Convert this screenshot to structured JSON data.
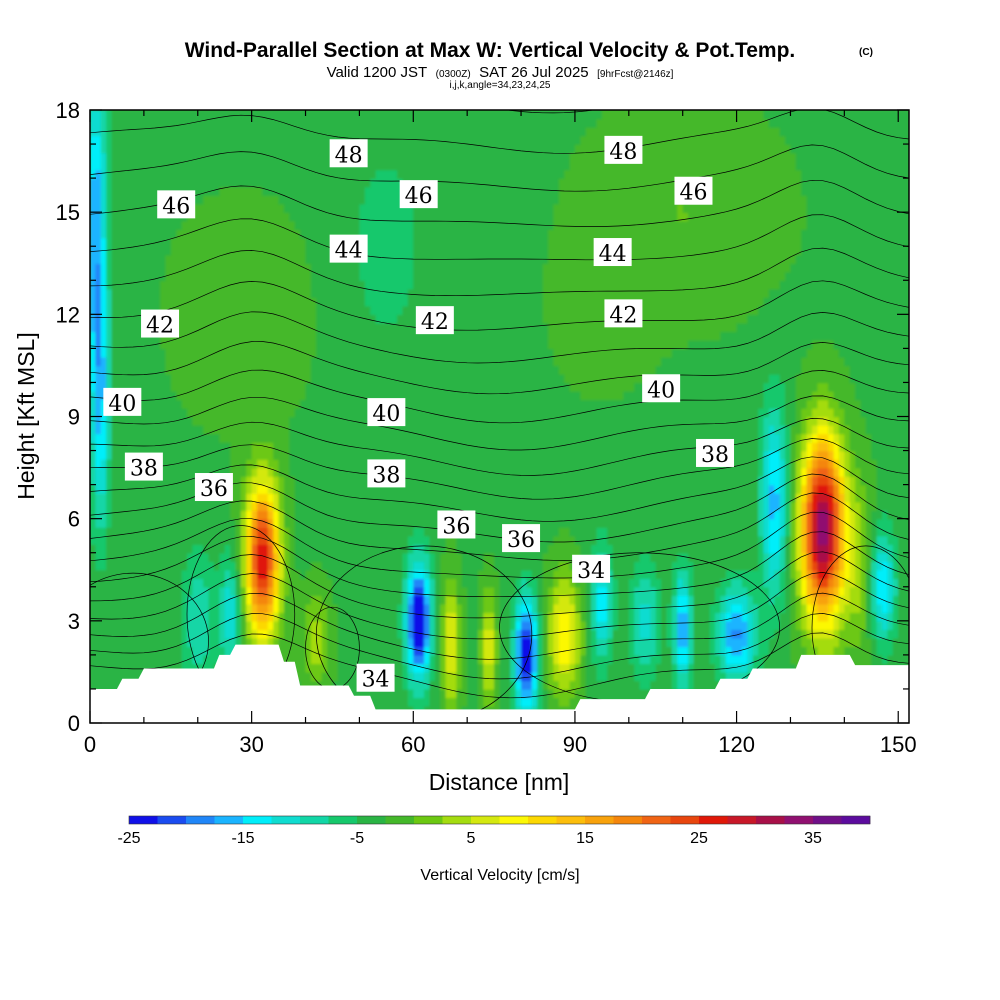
{
  "chart_data": {
    "type": "heatmap",
    "title": "Wind-Parallel Section at Max W: Vertical Velocity & Pot.Temp.",
    "title_mark": "(C)",
    "subtitle_parts": [
      "Valid 1200 JST",
      "(0300Z)",
      "SAT 26 Jul 2025",
      "[9hrFcst@2146z]"
    ],
    "subtitle2": "i,j,k,angle=34,23,24,25",
    "xlabel": "Distance [nm]",
    "ylabel": "Height [Kft MSL]",
    "xlim": [
      0,
      152
    ],
    "ylim": [
      0,
      18
    ],
    "x_ticks": [
      "0",
      "30",
      "60",
      "90",
      "120",
      "150"
    ],
    "y_ticks": [
      "0",
      "3",
      "6",
      "9",
      "12",
      "15",
      "18"
    ],
    "colorbar": {
      "title": "Vertical Velocity [cm/s]",
      "min": -25,
      "max": 40,
      "step": 2.5,
      "tick_labels": [
        "-25",
        "-15",
        "-5",
        "5",
        "15",
        "25",
        "35"
      ],
      "colors": [
        "#1010e8",
        "#1a4cf0",
        "#2086f8",
        "#1ab4ff",
        "#00eefa",
        "#10dcd0",
        "#12d6a6",
        "#16c86c",
        "#2ab444",
        "#44b82a",
        "#6cc812",
        "#a4dc10",
        "#d4e810",
        "#fcf806",
        "#fcd802",
        "#fcbe0c",
        "#f8a20c",
        "#f4860c",
        "#f06414",
        "#e8460e",
        "#e01808",
        "#c81828",
        "#a81048",
        "#901070",
        "#701088",
        "#5c0c9e"
      ]
    },
    "terrain_kft": [
      [
        0,
        1.0
      ],
      [
        5,
        1.0
      ],
      [
        6,
        1.3
      ],
      [
        9,
        1.3
      ],
      [
        10,
        1.6
      ],
      [
        23,
        1.6
      ],
      [
        24,
        2.0
      ],
      [
        26,
        2.0
      ],
      [
        27,
        2.3
      ],
      [
        35,
        2.3
      ],
      [
        36,
        1.8
      ],
      [
        38,
        1.8
      ],
      [
        39,
        1.1
      ],
      [
        48,
        1.1
      ],
      [
        49,
        0.8
      ],
      [
        52,
        0.8
      ],
      [
        53,
        0.4
      ],
      [
        90,
        0.4
      ],
      [
        91,
        0.7
      ],
      [
        103,
        0.7
      ],
      [
        104,
        1.0
      ],
      [
        116,
        1.0
      ],
      [
        117,
        1.3
      ],
      [
        122,
        1.3
      ],
      [
        123,
        1.6
      ],
      [
        131,
        1.6
      ],
      [
        132,
        2.0
      ],
      [
        141,
        2.0
      ],
      [
        142,
        1.7
      ],
      [
        152,
        1.7
      ]
    ],
    "vertical_velocity_features": [
      {
        "x": 1,
        "y": 14.5,
        "sx": 1.5,
        "sy": 3.5,
        "w_cms": -14
      },
      {
        "x": 2,
        "y": 9.0,
        "sx": 1.2,
        "sy": 2.5,
        "w_cms": -10
      },
      {
        "x": 32,
        "y": 4.8,
        "sx": 2.2,
        "sy": 1.6,
        "w_cms": 30
      },
      {
        "x": 26,
        "y": 3.2,
        "sx": 1.5,
        "sy": 1.2,
        "w_cms": -9
      },
      {
        "x": 20,
        "y": 3.0,
        "sx": 2.0,
        "sy": 1.5,
        "w_cms": -7
      },
      {
        "x": 42,
        "y": 2.4,
        "sx": 1.8,
        "sy": 1.0,
        "w_cms": 7
      },
      {
        "x": 61,
        "y": 3.0,
        "sx": 1.6,
        "sy": 1.2,
        "w_cms": -24
      },
      {
        "x": 67,
        "y": 2.3,
        "sx": 1.2,
        "sy": 1.3,
        "w_cms": 11
      },
      {
        "x": 74,
        "y": 2.2,
        "sx": 1.0,
        "sy": 1.2,
        "w_cms": 10
      },
      {
        "x": 81,
        "y": 2.0,
        "sx": 1.5,
        "sy": 1.2,
        "w_cms": -23
      },
      {
        "x": 88,
        "y": 2.6,
        "sx": 2.2,
        "sy": 1.2,
        "w_cms": 13
      },
      {
        "x": 95,
        "y": 3.5,
        "sx": 1.4,
        "sy": 1.2,
        "w_cms": -11
      },
      {
        "x": 103,
        "y": 3.0,
        "sx": 2.0,
        "sy": 1.2,
        "w_cms": -8
      },
      {
        "x": 110,
        "y": 2.8,
        "sx": 1.2,
        "sy": 1.2,
        "w_cms": -14
      },
      {
        "x": 120,
        "y": 2.6,
        "sx": 2.5,
        "sy": 1.0,
        "w_cms": -15
      },
      {
        "x": 127,
        "y": 6.5,
        "sx": 1.8,
        "sy": 2.0,
        "w_cms": -13
      },
      {
        "x": 136,
        "y": 5.7,
        "sx": 2.8,
        "sy": 1.9,
        "w_cms": 37
      },
      {
        "x": 143,
        "y": 4.5,
        "sx": 2.0,
        "sy": 1.8,
        "w_cms": 6
      },
      {
        "x": 147,
        "y": 4.0,
        "sx": 1.8,
        "sy": 1.2,
        "w_cms": -12
      },
      {
        "x": 55,
        "y": 14.0,
        "sx": 6.0,
        "sy": 2.5,
        "w_cms": -3
      },
      {
        "x": 28,
        "y": 12.0,
        "sx": 8.0,
        "sy": 2.0,
        "w_cms": 3
      },
      {
        "x": 110,
        "y": 15.0,
        "sx": 12.0,
        "sy": 2.0,
        "w_cms": 3
      },
      {
        "x": 95,
        "y": 12.0,
        "sx": 6.0,
        "sy": 1.5,
        "w_cms": 2
      }
    ],
    "potential_temperature_labels": [
      {
        "label": "48",
        "x": 48,
        "y": 16.7
      },
      {
        "label": "48",
        "x": 99,
        "y": 16.8
      },
      {
        "label": "46",
        "x": 16,
        "y": 15.2
      },
      {
        "label": "46",
        "x": 61,
        "y": 15.5
      },
      {
        "label": "46",
        "x": 112,
        "y": 15.6
      },
      {
        "label": "44",
        "x": 48,
        "y": 13.9
      },
      {
        "label": "44",
        "x": 97,
        "y": 13.8
      },
      {
        "label": "42",
        "x": 13,
        "y": 11.7
      },
      {
        "label": "42",
        "x": 64,
        "y": 11.8
      },
      {
        "label": "42",
        "x": 99,
        "y": 12.0
      },
      {
        "label": "40",
        "x": 6,
        "y": 9.4
      },
      {
        "label": "40",
        "x": 55,
        "y": 9.1
      },
      {
        "label": "40",
        "x": 106,
        "y": 9.8
      },
      {
        "label": "38",
        "x": 10,
        "y": 7.5
      },
      {
        "label": "38",
        "x": 55,
        "y": 7.3
      },
      {
        "label": "38",
        "x": 116,
        "y": 7.9
      },
      {
        "label": "36",
        "x": 23,
        "y": 6.9
      },
      {
        "label": "36",
        "x": 68,
        "y": 5.8
      },
      {
        "label": "36",
        "x": 80,
        "y": 5.4
      },
      {
        "label": "34",
        "x": 93,
        "y": 4.5
      },
      {
        "label": "34",
        "x": 53,
        "y": 1.3
      }
    ]
  }
}
